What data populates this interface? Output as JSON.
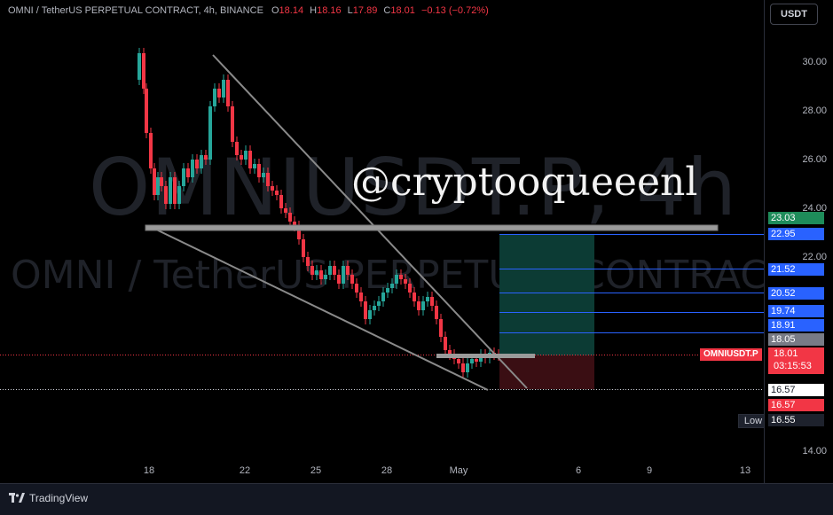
{
  "legend": {
    "symbol": "OMNI / TetherUS PERPETUAL CONTRACT, 4h, BINANCE",
    "o_label": "O",
    "o": "18.14",
    "h_label": "H",
    "h": "18.16",
    "l_label": "L",
    "l": "17.89",
    "c_label": "C",
    "c": "18.01",
    "change": "−0.13 (−0.72%)"
  },
  "watermark": {
    "big": "OMNIUSDT.P, 4h",
    "small": "OMNI / TetherUS PERPETUAL CONTRACT"
  },
  "overlay_text": "@cryptooqueeenl",
  "currency_button": "USDT",
  "price_axis": [
    "30.00",
    "28.00",
    "26.00",
    "24.00",
    "22.00",
    "14.00"
  ],
  "time_axis": [
    "18",
    "22",
    "25",
    "28",
    "May",
    "6",
    "9",
    "13"
  ],
  "price_labels": {
    "tp_top": "23.03",
    "levels": [
      "22.95",
      "21.52",
      "20.52",
      "19.74",
      "18.91"
    ],
    "entry": "18.05",
    "sym_tag": "OMNIUSDT.P",
    "last_price": "18.01",
    "countdown": "03:15:53",
    "stop_white": "16.57",
    "stop_red": "16.57",
    "low_label": "Low",
    "low_value": "16.55"
  },
  "colors": {
    "up": "#26a69a",
    "down": "#f23645",
    "level_blue": "#2962ff",
    "target_fill": "#0d3d35",
    "stop_fill": "#3d0f14"
  },
  "brand": {
    "name": "TradingView",
    "icon": "tradingview-logo-icon"
  }
}
